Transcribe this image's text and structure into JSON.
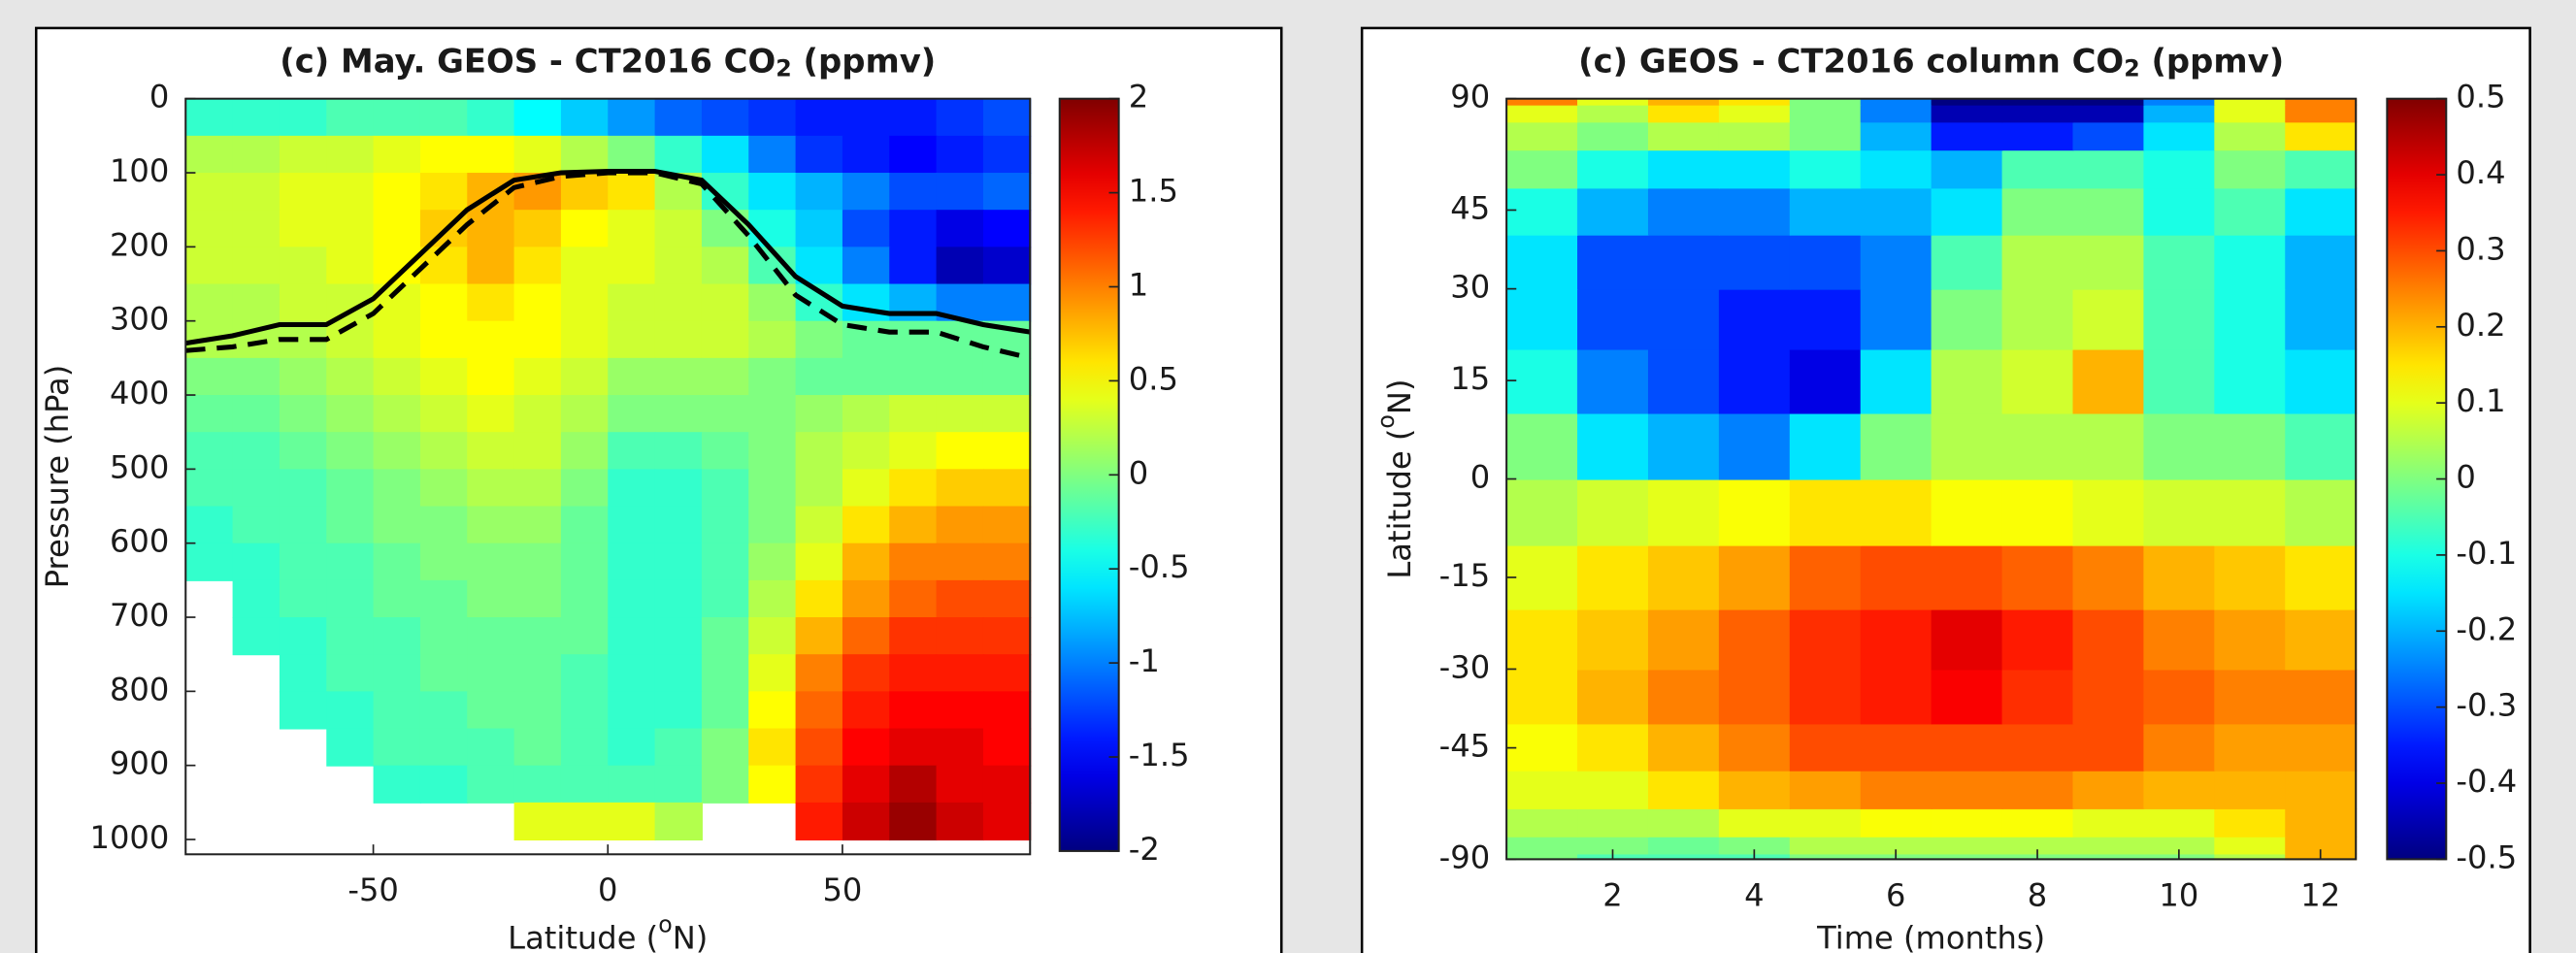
{
  "chart_data": [
    {
      "type": "heatmap",
      "title": [
        "(c) May. GEOS - CT2016 CO",
        "2",
        " (ppmv)"
      ],
      "xlabel": [
        "Latitude (",
        "o",
        "N)"
      ],
      "ylabel": "Pressure (hPa)",
      "xlim": [
        -90,
        90
      ],
      "xticks": [
        -50,
        0,
        50
      ],
      "ylim": [
        0,
        1020
      ],
      "yticks": [
        0,
        100,
        200,
        300,
        400,
        500,
        600,
        700,
        800,
        900,
        1000
      ],
      "yreverse": true,
      "x": [
        -85,
        -75,
        -65,
        -55,
        -45,
        -35,
        -25,
        -15,
        -5,
        5,
        15,
        25,
        35,
        45,
        55,
        65,
        75,
        85
      ],
      "y": [
        25,
        75,
        125,
        175,
        225,
        275,
        325,
        375,
        425,
        475,
        525,
        575,
        625,
        675,
        725,
        775,
        825,
        875,
        925,
        975
      ],
      "xstep": 10,
      "ystep": 50,
      "z": [
        [
          -0.3,
          -0.3,
          -0.3,
          -0.2,
          -0.2,
          -0.2,
          -0.3,
          -0.5,
          -0.7,
          -0.9,
          -1.1,
          -1.2,
          -1.3,
          -1.4,
          -1.4,
          -1.4,
          -1.3,
          -1.2
        ],
        [
          0.2,
          0.2,
          0.3,
          0.3,
          0.4,
          0.5,
          0.5,
          0.4,
          0.2,
          0,
          -0.3,
          -0.6,
          -1.0,
          -1.3,
          -1.4,
          -1.5,
          -1.4,
          -1.3
        ],
        [
          0.3,
          0.3,
          0.4,
          0.4,
          0.5,
          0.6,
          0.8,
          0.9,
          0.7,
          0.6,
          0.2,
          -0.3,
          -0.6,
          -0.8,
          -1.0,
          -1.2,
          -1.2,
          -1.1
        ],
        [
          0.3,
          0.3,
          0.4,
          0.4,
          0.5,
          0.7,
          0.8,
          0.7,
          0.5,
          0.4,
          0.3,
          0.0,
          -0.4,
          -0.7,
          -1.2,
          -1.4,
          -1.6,
          -1.5
        ],
        [
          0.3,
          0.3,
          0.3,
          0.4,
          0.5,
          0.6,
          0.8,
          0.6,
          0.4,
          0.4,
          0.3,
          0.2,
          -0.2,
          -0.6,
          -1.0,
          -1.4,
          -1.8,
          -1.7
        ],
        [
          0.2,
          0.2,
          0.3,
          0.3,
          0.4,
          0.5,
          0.6,
          0.5,
          0.4,
          0.3,
          0.3,
          0.3,
          0.1,
          -0.3,
          -0.6,
          -0.8,
          -1.0,
          -1.0
        ],
        [
          0.2,
          0.2,
          0.2,
          0.3,
          0.4,
          0.5,
          0.5,
          0.5,
          0.4,
          0.3,
          0.3,
          0.3,
          0.2,
          0.0,
          -0.1,
          -0.1,
          -0.1,
          -0.1
        ],
        [
          0.0,
          0.0,
          0.1,
          0.2,
          0.3,
          0.4,
          0.5,
          0.4,
          0.3,
          0.1,
          0.1,
          0.1,
          0.0,
          -0.1,
          -0.1,
          -0.1,
          -0.1,
          -0.1
        ],
        [
          -0.1,
          -0.1,
          0.0,
          0.1,
          0.2,
          0.3,
          0.4,
          0.3,
          0.2,
          0.0,
          0.0,
          0.0,
          0.0,
          0.1,
          0.2,
          0.3,
          0.3,
          0.3
        ],
        [
          -0.2,
          -0.2,
          -0.1,
          0.0,
          0.1,
          0.2,
          0.3,
          0.3,
          0.1,
          -0.2,
          -0.2,
          -0.1,
          0.0,
          0.2,
          0.3,
          0.4,
          0.5,
          0.5
        ],
        [
          -0.2,
          -0.2,
          -0.2,
          -0.1,
          0.0,
          0.1,
          0.2,
          0.2,
          0.0,
          -0.3,
          -0.3,
          -0.2,
          0.0,
          0.2,
          0.4,
          0.6,
          0.7,
          0.7
        ],
        [
          -0.3,
          -0.2,
          -0.2,
          -0.1,
          0.0,
          0.0,
          0.1,
          0.1,
          -0.1,
          -0.3,
          -0.3,
          -0.2,
          0.0,
          0.3,
          0.6,
          0.8,
          0.9,
          0.9
        ],
        [
          -0.3,
          -0.3,
          -0.2,
          -0.2,
          -0.1,
          0.0,
          0.0,
          0.0,
          -0.1,
          -0.3,
          -0.3,
          -0.2,
          0.1,
          0.4,
          0.8,
          1.0,
          1.0,
          1.0
        ],
        [
          null,
          -0.3,
          -0.2,
          -0.2,
          -0.1,
          -0.1,
          0.0,
          0.0,
          -0.1,
          -0.3,
          -0.3,
          -0.2,
          0.2,
          0.6,
          0.9,
          1.1,
          1.2,
          1.2
        ],
        [
          null,
          -0.3,
          -0.3,
          -0.2,
          -0.2,
          -0.1,
          -0.1,
          -0.1,
          -0.1,
          -0.3,
          -0.3,
          -0.1,
          0.3,
          0.8,
          1.1,
          1.3,
          1.3,
          1.3
        ],
        [
          null,
          null,
          -0.3,
          -0.2,
          -0.2,
          -0.1,
          -0.1,
          -0.1,
          -0.2,
          -0.3,
          -0.3,
          -0.1,
          0.4,
          1.0,
          1.3,
          1.4,
          1.4,
          1.4
        ],
        [
          null,
          null,
          -0.3,
          -0.3,
          -0.2,
          -0.2,
          -0.1,
          -0.1,
          -0.2,
          -0.3,
          -0.3,
          -0.1,
          0.5,
          1.1,
          1.4,
          1.5,
          1.5,
          1.5
        ],
        [
          null,
          null,
          null,
          -0.3,
          -0.2,
          -0.2,
          -0.2,
          -0.1,
          -0.2,
          -0.3,
          -0.2,
          0.0,
          0.6,
          1.2,
          1.5,
          1.6,
          1.6,
          1.5
        ],
        [
          null,
          null,
          null,
          null,
          -0.3,
          -0.3,
          -0.2,
          -0.2,
          -0.2,
          -0.2,
          -0.2,
          0.0,
          0.5,
          1.3,
          1.6,
          1.8,
          1.6,
          1.6
        ],
        [
          null,
          null,
          null,
          null,
          null,
          null,
          null,
          0.4,
          0.4,
          0.4,
          0.2,
          null,
          null,
          1.4,
          1.7,
          1.9,
          1.7,
          1.6
        ]
      ],
      "colormap": "jet",
      "clim": [
        -2,
        2
      ],
      "cticks": [
        -2,
        -1.5,
        -1,
        -0.5,
        0,
        0.5,
        1,
        1.5,
        2
      ],
      "contours": [
        {
          "color": "#000000",
          "dashed": false,
          "x": [
            -90,
            -80,
            -70,
            -60,
            -50,
            -40,
            -30,
            -20,
            -10,
            0,
            10,
            20,
            30,
            40,
            50,
            60,
            70,
            80,
            90
          ],
          "values": [
            330,
            320,
            305,
            305,
            270,
            210,
            150,
            110,
            100,
            98,
            98,
            110,
            170,
            240,
            280,
            290,
            290,
            305,
            315
          ]
        },
        {
          "color": "#000000",
          "dashed": true,
          "x": [
            -90,
            -80,
            -70,
            -60,
            -50,
            -40,
            -30,
            -20,
            -10,
            0,
            10,
            20,
            30,
            40,
            50,
            60,
            70,
            80,
            90
          ],
          "values": [
            340,
            335,
            325,
            325,
            290,
            230,
            170,
            120,
            105,
            100,
            100,
            115,
            185,
            265,
            305,
            315,
            315,
            335,
            350
          ]
        }
      ]
    },
    {
      "type": "heatmap",
      "title": [
        "(c) GEOS - CT2016 column CO",
        "2",
        " (ppmv)"
      ],
      "xlabel": [
        "Time (months)"
      ],
      "ylabel": [
        "Latitude (",
        "o",
        "N)"
      ],
      "xlim": [
        0.5,
        12.5
      ],
      "xticks": [
        2,
        4,
        6,
        8,
        10,
        12
      ],
      "ylim": [
        -90,
        90
      ],
      "yticks": [
        -90,
        -45,
        -30,
        -15,
        0,
        15,
        30,
        45,
        90
      ],
      "yscale": "sine",
      "x": [
        1,
        2,
        3,
        4,
        5,
        6,
        7,
        8,
        9,
        10,
        11,
        12
      ],
      "y": [
        -85,
        -75,
        -65,
        -55,
        -45,
        -35,
        -25,
        -15,
        -5,
        5,
        15,
        25,
        35,
        45,
        55,
        65,
        75,
        85
      ],
      "xstep": 1,
      "ystep": 10,
      "z": [
        [
          0.0,
          -0.05,
          -0.05,
          -0.05,
          0.0,
          0.0,
          0.0,
          0.0,
          0.0,
          0.0,
          0.05,
          0.2
        ],
        [
          0.0,
          0.0,
          -0.02,
          0.0,
          0.05,
          0.05,
          0.05,
          0.05,
          0.05,
          0.05,
          0.1,
          0.2
        ],
        [
          0.05,
          0.05,
          0.05,
          0.1,
          0.1,
          0.12,
          0.12,
          0.12,
          0.1,
          0.1,
          0.15,
          0.2
        ],
        [
          0.1,
          0.1,
          0.15,
          0.2,
          0.22,
          0.25,
          0.25,
          0.25,
          0.22,
          0.2,
          0.2,
          0.2
        ],
        [
          0.12,
          0.15,
          0.2,
          0.25,
          0.3,
          0.3,
          0.3,
          0.3,
          0.3,
          0.25,
          0.22,
          0.22
        ],
        [
          0.15,
          0.2,
          0.25,
          0.28,
          0.33,
          0.35,
          0.38,
          0.33,
          0.3,
          0.28,
          0.25,
          0.25
        ],
        [
          0.15,
          0.18,
          0.22,
          0.28,
          0.33,
          0.35,
          0.4,
          0.35,
          0.3,
          0.25,
          0.22,
          0.2
        ],
        [
          0.1,
          0.15,
          0.18,
          0.22,
          0.28,
          0.3,
          0.3,
          0.28,
          0.25,
          0.2,
          0.18,
          0.15
        ],
        [
          0.05,
          0.08,
          0.1,
          0.12,
          0.15,
          0.15,
          0.12,
          0.12,
          0.1,
          0.08,
          0.08,
          0.05
        ],
        [
          0.0,
          -0.15,
          -0.2,
          -0.25,
          -0.15,
          0.0,
          0.05,
          0.05,
          0.05,
          0.0,
          0.0,
          -0.05
        ],
        [
          -0.1,
          -0.25,
          -0.3,
          -0.35,
          -0.4,
          -0.15,
          0.05,
          0.08,
          0.2,
          -0.05,
          -0.1,
          -0.15
        ],
        [
          -0.15,
          -0.3,
          -0.3,
          -0.35,
          -0.35,
          -0.25,
          0.0,
          0.05,
          0.08,
          -0.05,
          -0.1,
          -0.2
        ],
        [
          -0.15,
          -0.3,
          -0.3,
          -0.3,
          -0.3,
          -0.25,
          -0.05,
          0.05,
          0.05,
          -0.05,
          -0.1,
          -0.2
        ],
        [
          -0.1,
          -0.2,
          -0.25,
          -0.25,
          -0.2,
          -0.2,
          -0.15,
          0.0,
          0.0,
          -0.1,
          -0.05,
          -0.15
        ],
        [
          0.0,
          -0.1,
          -0.15,
          -0.15,
          -0.1,
          -0.15,
          -0.2,
          -0.05,
          -0.05,
          -0.1,
          0.0,
          -0.05
        ],
        [
          0.05,
          0.0,
          0.05,
          0.05,
          0.0,
          -0.2,
          -0.35,
          -0.35,
          -0.3,
          -0.15,
          0.05,
          0.15
        ],
        [
          0.1,
          0.05,
          0.15,
          0.1,
          0.0,
          -0.25,
          -0.45,
          -0.45,
          -0.45,
          -0.2,
          0.1,
          0.25
        ],
        [
          0.25,
          0.1,
          0.2,
          0.15,
          0.0,
          -0.25,
          -0.5,
          -0.5,
          -0.5,
          -0.25,
          0.1,
          0.25
        ]
      ],
      "colormap": "jet",
      "clim": [
        -0.5,
        0.5
      ],
      "cticks": [
        -0.5,
        -0.4,
        -0.3,
        -0.2,
        -0.1,
        0,
        0.1,
        0.2,
        0.3,
        0.4,
        0.5
      ]
    }
  ]
}
